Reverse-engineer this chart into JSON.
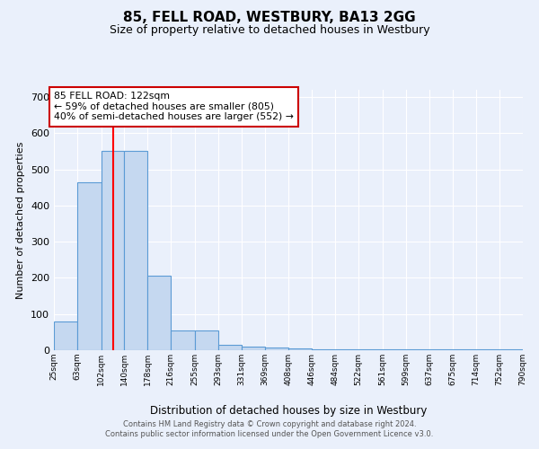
{
  "title": "85, FELL ROAD, WESTBURY, BA13 2GG",
  "subtitle": "Size of property relative to detached houses in Westbury",
  "xlabel": "Distribution of detached houses by size in Westbury",
  "ylabel": "Number of detached properties",
  "footer1": "Contains HM Land Registry data © Crown copyright and database right 2024.",
  "footer2": "Contains public sector information licensed under the Open Government Licence v3.0.",
  "annotation_line1": "85 FELL ROAD: 122sqm",
  "annotation_line2": "← 59% of detached houses are smaller (805)",
  "annotation_line3": "40% of semi-detached houses are larger (552) →",
  "bar_color": "#c5d8f0",
  "bar_edge_color": "#5b9bd5",
  "red_line_x": 122,
  "bin_edges": [
    25,
    63,
    102,
    140,
    178,
    216,
    255,
    293,
    331,
    369,
    408,
    446,
    484,
    522,
    561,
    599,
    637,
    675,
    714,
    752,
    790
  ],
  "bar_heights": [
    80,
    465,
    550,
    550,
    205,
    55,
    55,
    15,
    10,
    8,
    4,
    3,
    3,
    2,
    2,
    2,
    2,
    2,
    2,
    2
  ],
  "ylim": [
    0,
    720
  ],
  "yticks": [
    0,
    100,
    200,
    300,
    400,
    500,
    600,
    700
  ],
  "bg_color": "#eaf0fb",
  "grid_color": "#ffffff",
  "annotation_box_color": "#ffffff",
  "annotation_box_edge_color": "#cc0000"
}
